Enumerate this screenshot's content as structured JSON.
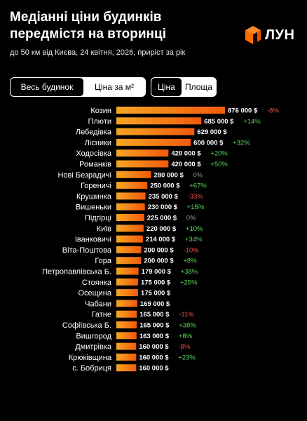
{
  "header": {
    "title_line1": "Медіанні ціни будинків",
    "title_line2": "передмістя на вторинці",
    "subtitle": "до 50 км від Києва, 24 квітня, 2026, приріст за рік"
  },
  "brand": {
    "name": "ЛУН",
    "color": "#ff6a00"
  },
  "toggles": {
    "scope": [
      {
        "label": "Весь будинок",
        "active": true
      },
      {
        "label": "Ціна за м²",
        "active": false
      }
    ],
    "metric": [
      {
        "label": "Ціна",
        "active": true
      },
      {
        "label": "Площа",
        "active": false
      }
    ]
  },
  "colors": {
    "bar_start": "#f5a623",
    "bar_end": "#f25a0c",
    "positive": "#5cd65c",
    "negative": "#e8554e",
    "neutral": "#9a9a9a"
  },
  "chart_data": {
    "type": "bar",
    "orientation": "horizontal",
    "xlim": [
      0,
      876000
    ],
    "categories": [
      "Козин",
      "Плюти",
      "Лебедівка",
      "Лісники",
      "Ходосівка",
      "Романків",
      "Нові Безрадичі",
      "Гореничі",
      "Крушинка",
      "Вишеньки",
      "Підгірці",
      "Київ",
      "Іванковичі",
      "Віта-Поштова",
      "Гора",
      "Петропавлівська Б.",
      "Стоянка",
      "Осещина",
      "Чабани",
      "Гатне",
      "Софіївська Б.",
      "Вишгород",
      "Дмитрівка",
      "Крюківщина",
      "с. Бобриця"
    ],
    "values": [
      876000,
      685000,
      629000,
      600000,
      420000,
      420000,
      280000,
      250000,
      235000,
      230000,
      225000,
      220000,
      214000,
      200000,
      200000,
      179000,
      175000,
      175000,
      169000,
      165000,
      165000,
      163000,
      160000,
      160000,
      160000
    ],
    "value_labels": [
      "876 000 $",
      "685 000 $",
      "629 000 $",
      "600 000 $",
      "420 000 $",
      "420 000 $",
      "280 000 $",
      "250 000 $",
      "235 000 $",
      "230 000 $",
      "225 000 $",
      "220 000 $",
      "214 000 $",
      "200 000 $",
      "200 000 $",
      "179 000 $",
      "175 000 $",
      "175 000 $",
      "169 000 $",
      "165 000 $",
      "165 000 $",
      "163 000 $",
      "160 000 $",
      "160 000 $",
      "160 000 $"
    ],
    "changes": [
      "-8%",
      "+14%",
      "",
      "+32%",
      "+20%",
      "+50%",
      "0%",
      "+67%",
      "-33%",
      "+15%",
      "0%",
      "+10%",
      "+34%",
      "-10%",
      "+8%",
      "+38%",
      "+25%",
      "",
      "",
      "-11%",
      "+38%",
      "+8%",
      "-8%",
      "+23%",
      ""
    ]
  }
}
